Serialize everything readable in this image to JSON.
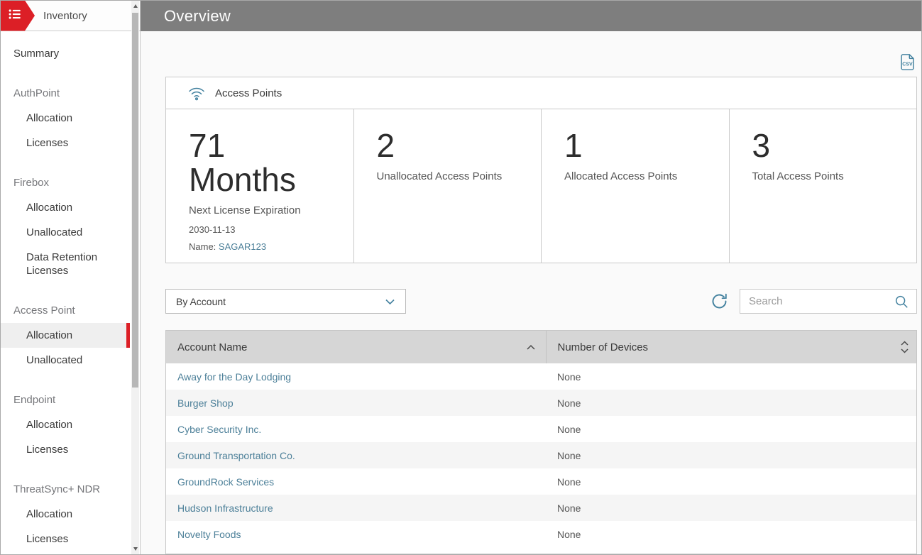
{
  "colors": {
    "accent_red": "#dc1f26",
    "icon_teal": "#41809e",
    "link_teal": "#4d8099",
    "header_gray": "#7e7e7e"
  },
  "sidebar": {
    "title": "Inventory",
    "items": [
      {
        "type": "item",
        "label": "Summary"
      },
      {
        "type": "group",
        "label": "AuthPoint"
      },
      {
        "type": "sub",
        "label": "Allocation"
      },
      {
        "type": "sub",
        "label": "Licenses"
      },
      {
        "type": "group",
        "label": "Firebox"
      },
      {
        "type": "sub",
        "label": "Allocation"
      },
      {
        "type": "sub",
        "label": "Unallocated"
      },
      {
        "type": "sub",
        "label": "Data Retention Licenses"
      },
      {
        "type": "group",
        "label": "Access Point"
      },
      {
        "type": "sub",
        "label": "Allocation",
        "selected": true
      },
      {
        "type": "sub",
        "label": "Unallocated"
      },
      {
        "type": "group",
        "label": "Endpoint"
      },
      {
        "type": "sub",
        "label": "Allocation"
      },
      {
        "type": "sub",
        "label": "Licenses"
      },
      {
        "type": "group",
        "label": "ThreatSync+ NDR"
      },
      {
        "type": "sub",
        "label": "Allocation"
      },
      {
        "type": "sub",
        "label": "Licenses"
      }
    ]
  },
  "header": {
    "title": "Overview"
  },
  "stats_panel": {
    "title": "Access Points",
    "cards": [
      {
        "value": "71",
        "value_unit": "Months",
        "label": "Next License Expiration",
        "date": "2030-11-13",
        "name_label": "Name:",
        "name_link": "SAGAR123"
      },
      {
        "value": "2",
        "label": "Unallocated Access Points"
      },
      {
        "value": "1",
        "label": "Allocated Access Points"
      },
      {
        "value": "3",
        "label": "Total Access Points"
      }
    ]
  },
  "filters": {
    "group_by_selected": "By Account",
    "search_placeholder": "Search"
  },
  "table": {
    "columns": [
      "Account Name",
      "Number of Devices"
    ],
    "rows": [
      {
        "account": "Away for the Day Lodging",
        "devices": "None"
      },
      {
        "account": "Burger Shop",
        "devices": "None"
      },
      {
        "account": "Cyber Security Inc.",
        "devices": "None"
      },
      {
        "account": "Ground Transportation Co.",
        "devices": "None"
      },
      {
        "account": "GroundRock Services",
        "devices": "None"
      },
      {
        "account": "Hudson Infrastructure",
        "devices": "None"
      },
      {
        "account": "Novelty Foods",
        "devices": "None"
      }
    ]
  }
}
